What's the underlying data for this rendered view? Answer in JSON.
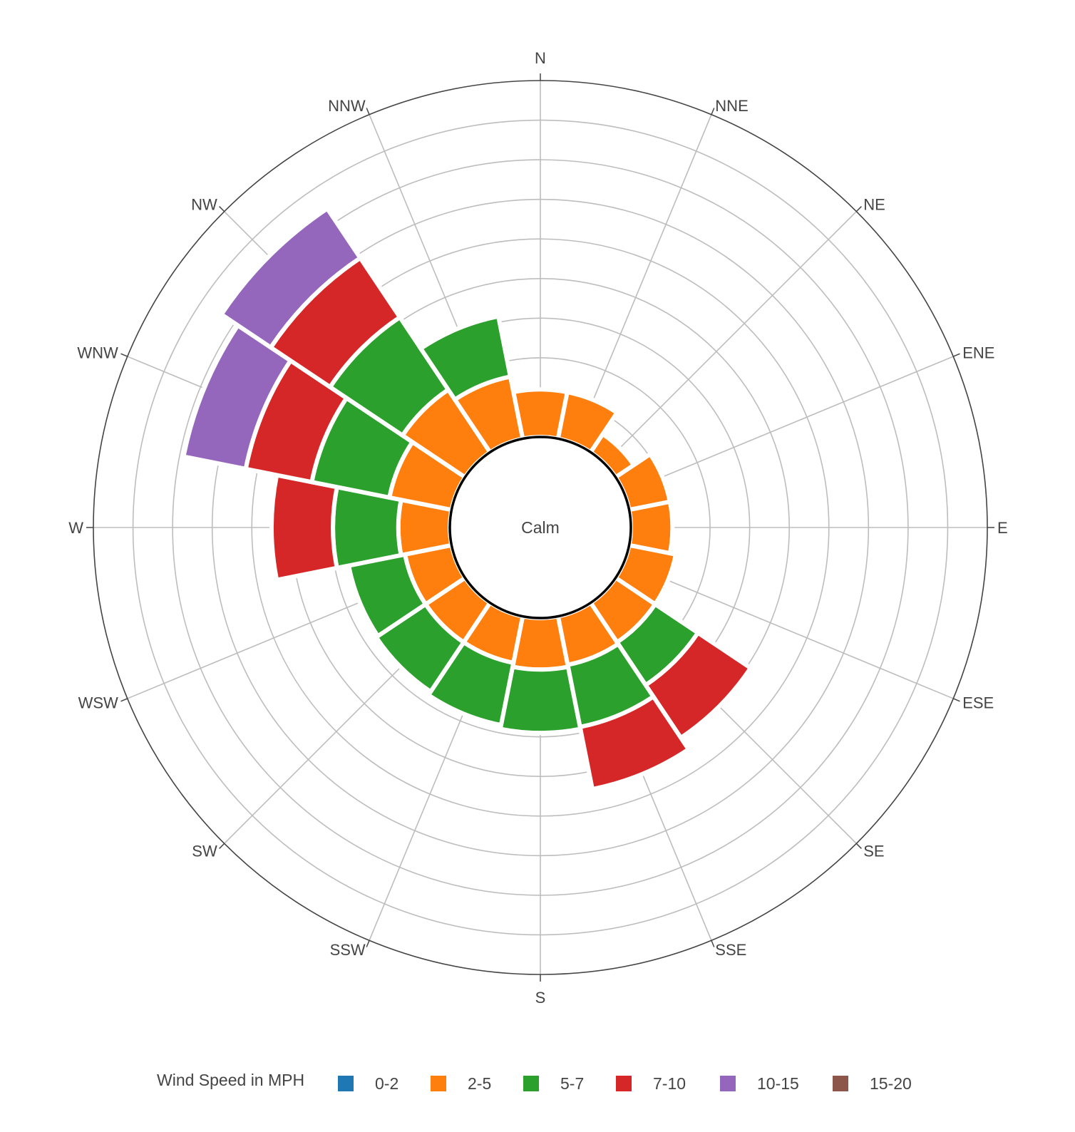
{
  "chart_data": {
    "type": "barpolar",
    "angular_axis": {
      "direction": "clockwise",
      "rotation": "north-up",
      "categories": [
        "N",
        "NNE",
        "NE",
        "ENE",
        "E",
        "ESE",
        "SE",
        "SSE",
        "S",
        "SSW",
        "SW",
        "WSW",
        "W",
        "WNW",
        "NW",
        "NNW"
      ]
    },
    "center_label": "Calm",
    "radial_axis": {
      "range": [
        0,
        9
      ],
      "grid": true,
      "tick_labels_visible": false
    },
    "legend": {
      "title": "Wind Speed in MPH",
      "placement": "bottom"
    },
    "series": [
      {
        "name": "0-2",
        "color": "#1f77b4",
        "values": [
          0,
          0,
          0,
          0,
          0,
          0,
          0,
          0,
          0,
          0,
          0,
          0,
          0,
          0,
          0,
          0
        ]
      },
      {
        "name": "2-5",
        "color": "#ff7f0e",
        "values": [
          1.2,
          1.2,
          0.55,
          1.05,
          1.05,
          1.2,
          1.2,
          1.25,
          1.3,
          1.2,
          1.2,
          1.2,
          1.3,
          1.6,
          1.9,
          1.6
        ]
      },
      {
        "name": "5-7",
        "color": "#2ca02c",
        "values": [
          0,
          0,
          0,
          0,
          0,
          0,
          1.3,
          1.6,
          1.6,
          1.6,
          1.5,
          1.45,
          1.65,
          2.0,
          2.2,
          1.55
        ]
      },
      {
        "name": "7-10",
        "color": "#d62728",
        "values": [
          0,
          0,
          0,
          0,
          0,
          0,
          1.6,
          1.6,
          0,
          0,
          0,
          0,
          1.55,
          1.7,
          1.8,
          0
        ]
      },
      {
        "name": "10-15",
        "color": "#9467bd",
        "values": [
          0,
          0,
          0,
          0,
          0,
          0,
          0,
          0,
          0,
          0,
          0,
          0,
          0,
          1.6,
          1.5,
          0
        ]
      },
      {
        "name": "15-20",
        "color": "#8c564b",
        "values": [
          0,
          0,
          0,
          0,
          0,
          0,
          0,
          0,
          0,
          0,
          0,
          0,
          0,
          0,
          0,
          0
        ]
      }
    ]
  }
}
